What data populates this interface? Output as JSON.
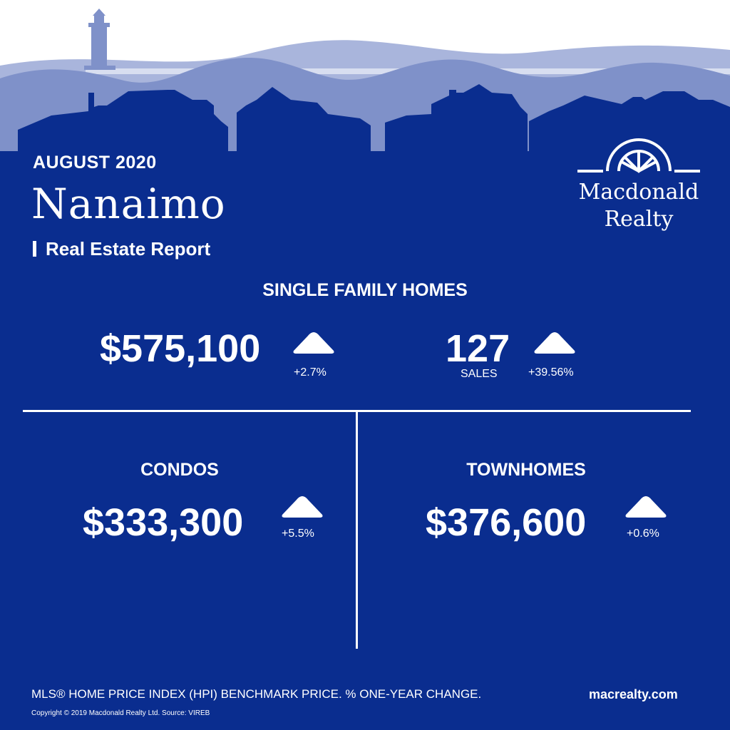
{
  "header": {
    "date": "AUGUST 2020",
    "city": "Nanaimo",
    "subtitle": "Real Estate Report"
  },
  "logo": {
    "line1": "Macdonald",
    "line2": "Realty"
  },
  "single_family": {
    "heading": "SINGLE FAMILY HOMES",
    "price": "$575,100",
    "price_change": "+2.7%",
    "sales": "127",
    "sales_label": "SALES",
    "sales_change": "+39.56%"
  },
  "condos": {
    "heading": "CONDOS",
    "price": "$333,300",
    "price_change": "+5.5%"
  },
  "townhomes": {
    "heading": "TOWNHOMES",
    "price": "$376,600",
    "price_change": "+0.6%"
  },
  "footer": {
    "note": "MLS® HOME PRICE INDEX (HPI) BENCHMARK PRICE.  % ONE-YEAR CHANGE.",
    "website": "macrealty.com",
    "copyright": "Copyright © 2019 Macdonald Realty Ltd.  Source: VIREB"
  },
  "colors": {
    "background": "#0a2d8f",
    "sky": "#ffffff",
    "far_hills": "#a9b5dc",
    "mid_hills": "#7f91c9",
    "text": "#ffffff"
  },
  "icons": {
    "change_direction": "up-arrow-icon",
    "lighthouse": "lighthouse-icon",
    "logo_mark": "wheel-logo-icon"
  }
}
